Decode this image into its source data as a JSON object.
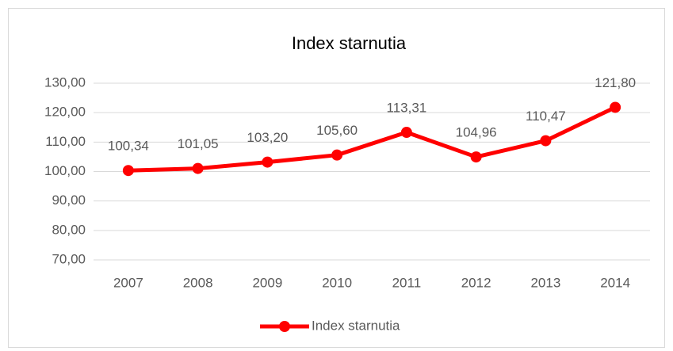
{
  "chart_data": {
    "type": "line",
    "title": "Index starnutia",
    "categories": [
      "2007",
      "2008",
      "2009",
      "2010",
      "2011",
      "2012",
      "2013",
      "2014"
    ],
    "series": [
      {
        "name": "Index starnutia",
        "color": "#ff0000",
        "values": [
          100.34,
          101.05,
          103.2,
          105.6,
          113.31,
          104.96,
          110.47,
          121.8
        ],
        "value_labels": [
          "100,34",
          "101,05",
          "103,20",
          "105,60",
          "113,31",
          "104,96",
          "110,47",
          "121,80"
        ]
      }
    ],
    "ylim": [
      70,
      130
    ],
    "yticks": [
      {
        "value": 70,
        "label": "70,00"
      },
      {
        "value": 80,
        "label": "80,00"
      },
      {
        "value": 90,
        "label": "90,00"
      },
      {
        "value": 100,
        "label": "100,00"
      },
      {
        "value": 110,
        "label": "110,00"
      },
      {
        "value": 120,
        "label": "120,00"
      },
      {
        "value": 130,
        "label": "130,00"
      }
    ],
    "grid": true,
    "legend": "bottom"
  }
}
